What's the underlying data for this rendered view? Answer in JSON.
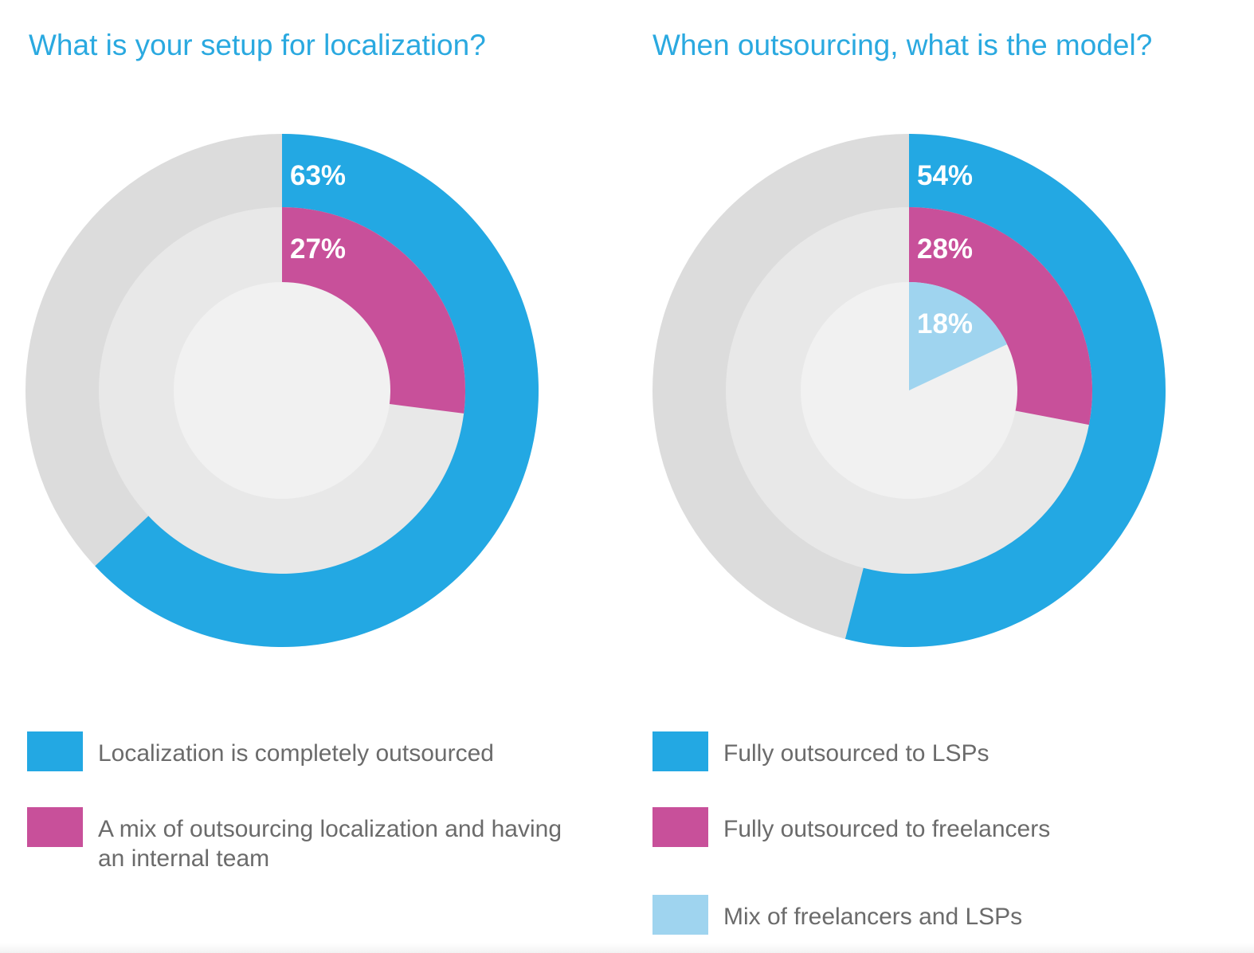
{
  "chart_data": [
    {
      "type": "pie",
      "title": "What is your setup for localization?",
      "series": [
        {
          "name": "Localization is completely outsourced",
          "value": 63,
          "label": "63%",
          "color": "#23a8e3"
        },
        {
          "name": "A mix of outsourcing localization and having an internal team",
          "value": 27,
          "label": "27%",
          "color": "#c8509a"
        }
      ],
      "legend_placement": "bottom"
    },
    {
      "type": "pie",
      "title": "When outsourcing, what is the model?",
      "series": [
        {
          "name": "Fully outsourced to LSPs",
          "value": 54,
          "label": "54%",
          "color": "#23a8e3"
        },
        {
          "name": "Fully outsourced to freelancers",
          "value": 28,
          "label": "28%",
          "color": "#c8509a"
        },
        {
          "name": "Mix of freelancers and LSPs",
          "value": 18,
          "label": "18%",
          "color": "#9fd4ef"
        }
      ],
      "legend_placement": "bottom"
    }
  ],
  "track_colors": [
    "#dcdcdc",
    "#e8e8e8",
    "#f1f1f1"
  ]
}
